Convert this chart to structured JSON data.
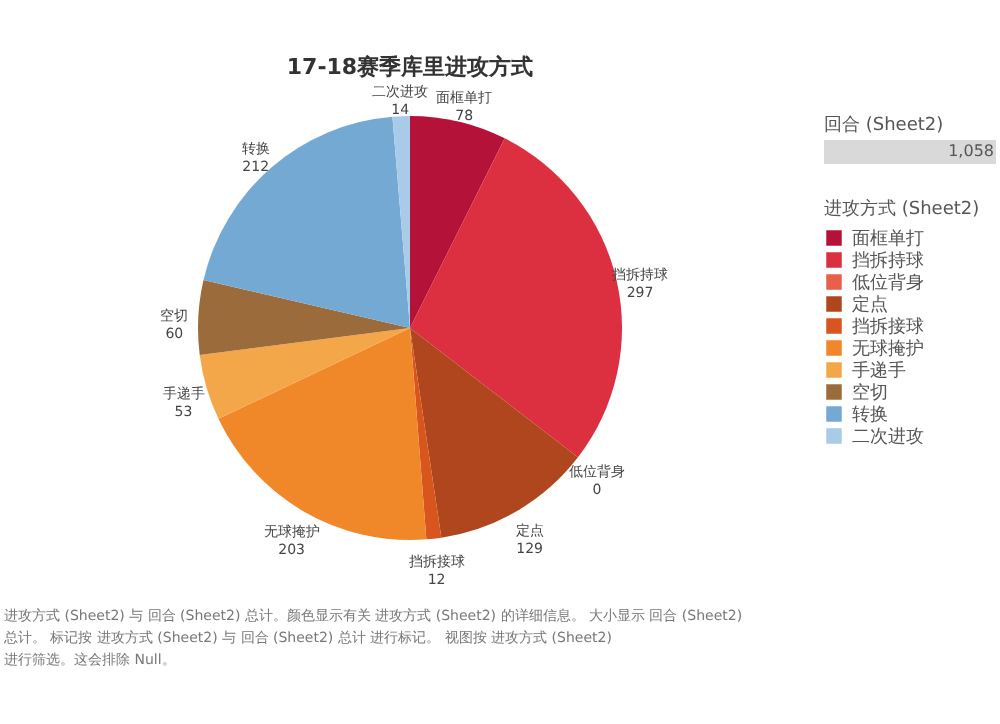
{
  "chart_data": {
    "type": "pie",
    "title": "17-18赛季库里进攻方式",
    "categories": [
      "面框单打",
      "挡拆持球",
      "低位背身",
      "定点",
      "挡拆接球",
      "无球掩护",
      "手递手",
      "空切",
      "转换",
      "二次进攻"
    ],
    "values": [
      78,
      297,
      0,
      129,
      12,
      203,
      53,
      60,
      212,
      14
    ],
    "colors": [
      "#b5123a",
      "#dc3040",
      "#e8604a",
      "#b0461e",
      "#d8561e",
      "#f0882a",
      "#f4a748",
      "#9c6b3c",
      "#74a9d4",
      "#a8cce8"
    ],
    "value_labels": [
      "78",
      "297",
      "0",
      "129",
      "12",
      "203",
      "53",
      "60",
      "212",
      "14"
    ],
    "legend": "right",
    "legend_title": "进攻方式 (Sheet2)",
    "annotations": [
      "回合 (Sheet2)",
      "1,058",
      "进攻方式 (Sheet2) 与 回合 (Sheet2) 总计。颜色显示有关 进攻方式 (Sheet2) 的详细信息。 大小显示 回合 (Sheet2)",
      "总计。 标记按 进攻方式 (Sheet2) 与 回合 (Sheet2) 总计 进行标记。 视图按 进攻方式 (Sheet2)",
      "进行筛选。这会排除 Null。"
    ]
  }
}
